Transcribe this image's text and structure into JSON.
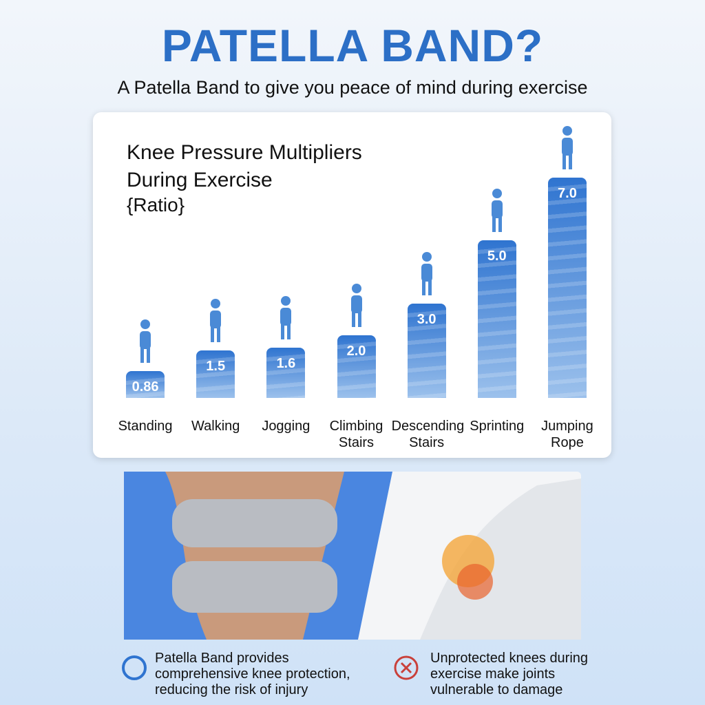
{
  "header": {
    "title": "PATELLA BAND?",
    "subtitle": "A Patella Band to give you peace of mind during exercise"
  },
  "chart_data": {
    "type": "bar",
    "title": "Knee Pressure Multipliers During Exercise",
    "subtitle": "{Ratio}",
    "categories": [
      "Standing",
      "Walking",
      "Jogging",
      "Climbing Stairs",
      "Descending Stairs",
      "Sprinting",
      "Jumping Rope"
    ],
    "values": [
      0.86,
      1.5,
      1.6,
      2,
      3,
      5,
      7
    ],
    "value_labels": [
      "0.86",
      "1.5",
      "1.6",
      "2.0",
      "3.0",
      "5.0",
      "7.0"
    ],
    "color": "#2f74d0"
  },
  "captions": [
    {
      "text": "Patella Band provides comprehensive knee protection, reducing the risk of injury"
    },
    {
      "text": "Unprotected knees during exercise make joints vulnerable to damage"
    }
  ]
}
